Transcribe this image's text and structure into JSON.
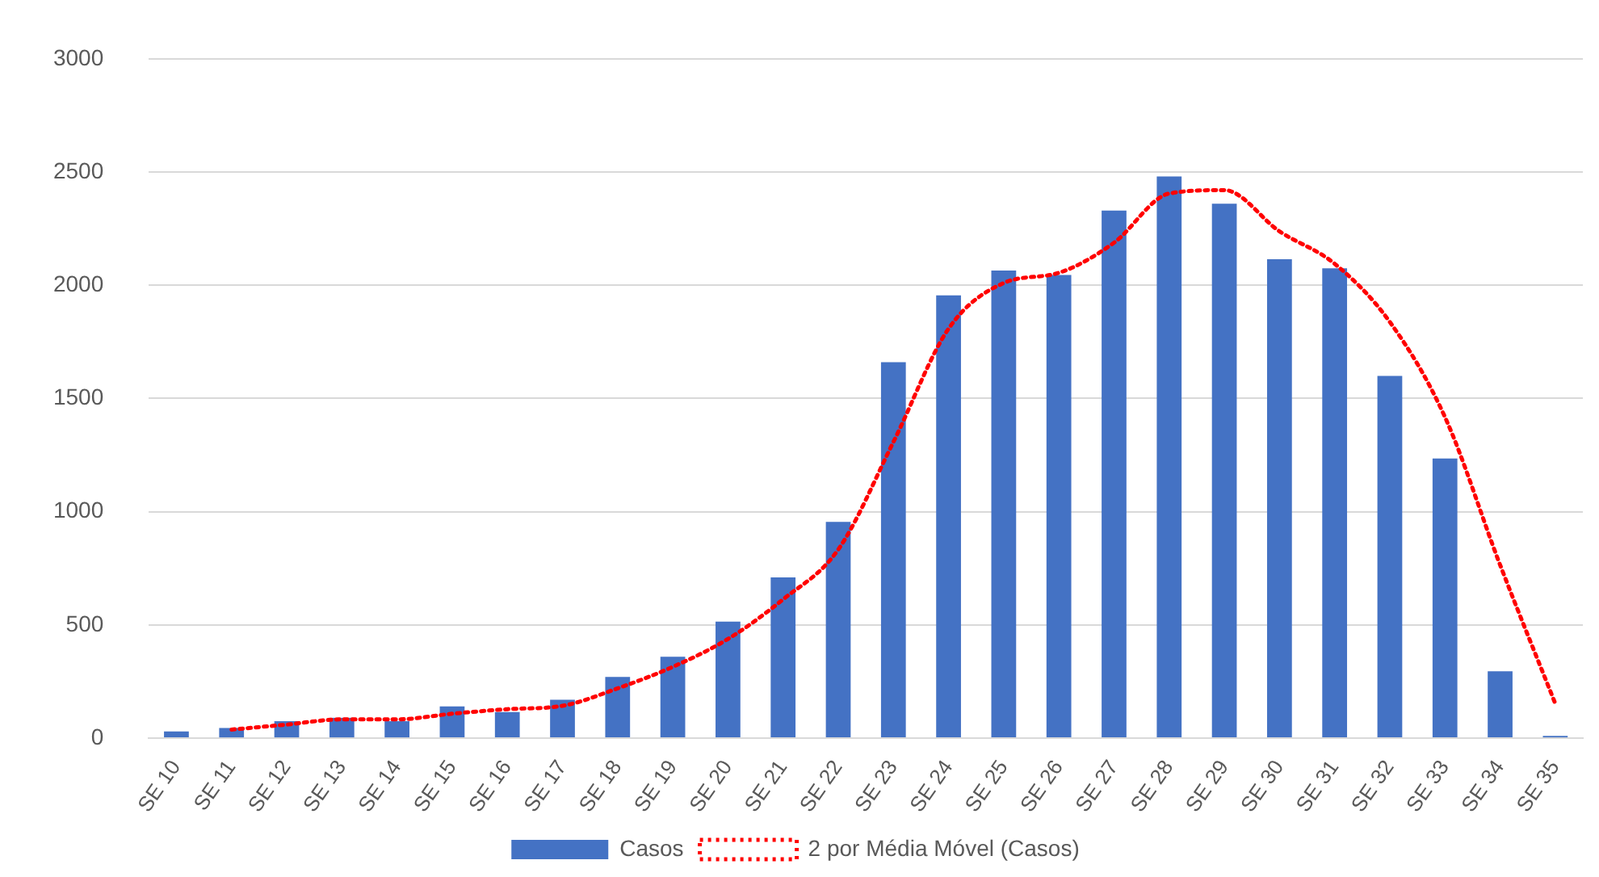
{
  "chart_data": {
    "type": "bar",
    "categories": [
      "SE 10",
      "SE 11",
      "SE 12",
      "SE 13",
      "SE 14",
      "SE 15",
      "SE 16",
      "SE 17",
      "SE 18",
      "SE 19",
      "SE 20",
      "SE 21",
      "SE 22",
      "SE 23",
      "SE 24",
      "SE 25",
      "SE 26",
      "SE 27",
      "SE 28",
      "SE 29",
      "SE 30",
      "SE 31",
      "SE 32",
      "SE 33",
      "SE 34",
      "SE 35"
    ],
    "series": [
      {
        "name": "Casos",
        "color": "#4472c4",
        "values": [
          30,
          45,
          75,
          90,
          75,
          140,
          115,
          170,
          270,
          360,
          515,
          710,
          955,
          1660,
          1955,
          2065,
          2045,
          2330,
          2480,
          2360,
          2115,
          2075,
          1600,
          1235,
          295,
          10
        ]
      },
      {
        "name": "2 por Média Móvel (Casos)",
        "type": "line",
        "color": "#ff0000",
        "line_style": "dotted",
        "marker": "none",
        "values": [
          null,
          38,
          60,
          83,
          83,
          108,
          128,
          143,
          220,
          315,
          438,
          613,
          833,
          1308,
          1808,
          2010,
          2055,
          2188,
          2405,
          2420,
          2238,
          2095,
          1838,
          1418,
          765,
          153
        ]
      }
    ],
    "ylim": [
      0,
      3000
    ],
    "yticks": [
      0,
      500,
      1000,
      1500,
      2000,
      2500,
      3000
    ],
    "grid": "y",
    "legend": "bottom"
  }
}
